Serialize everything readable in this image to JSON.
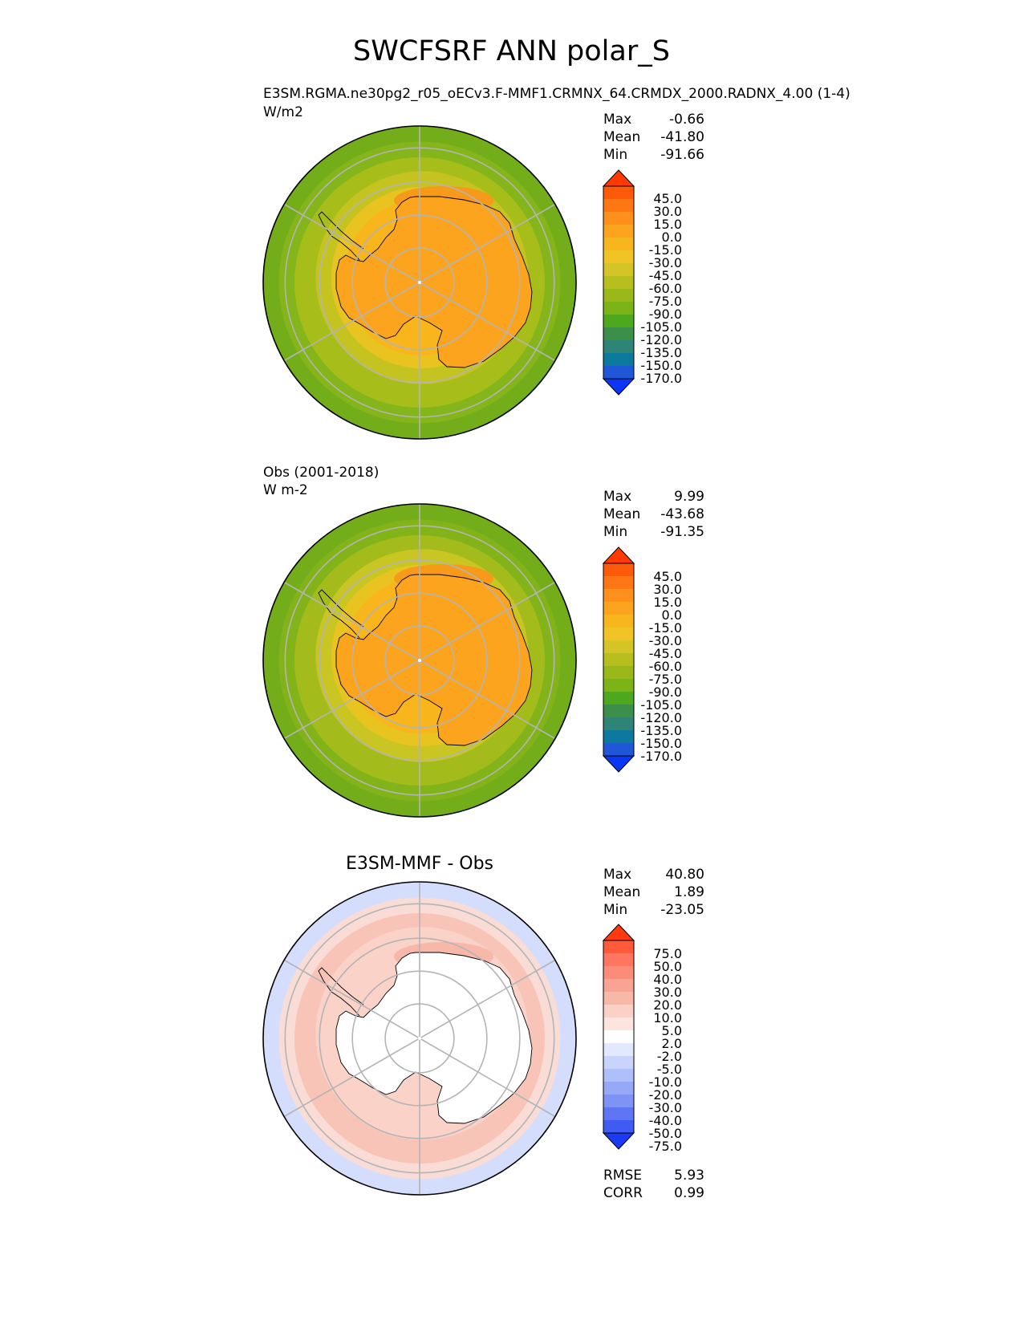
{
  "figure": {
    "title": "SWCFSRF ANN polar_S"
  },
  "panels": [
    {
      "id": "test",
      "title": "E3SM.RGMA.ne30pg2_r05_oECv3.F-MMF1.CRMNX_64.CRMDX_2000.RADNX_4.00 (1-4)",
      "units": "W/m2",
      "stats": [
        {
          "label": "Max",
          "value": "-0.66"
        },
        {
          "label": "Mean",
          "value": "-41.80"
        },
        {
          "label": "Min",
          "value": "-91.66"
        }
      ],
      "colorbar": {
        "levels": [
          "45.0",
          "30.0",
          "15.0",
          "0.0",
          "-15.0",
          "-30.0",
          "-45.0",
          "-60.0",
          "-75.0",
          "-90.0",
          "-105.0",
          "-120.0",
          "-135.0",
          "-150.0",
          "-170.0"
        ],
        "colors": [
          "#ff3a00",
          "#ff5a0a",
          "#ff7614",
          "#ff901c",
          "#fca41e",
          "#f7b51e",
          "#f0c326",
          "#d4c425",
          "#b6bf1e",
          "#9ab81a",
          "#7cb317",
          "#4ea81e",
          "#3c8f48",
          "#2e8476",
          "#0b7a9c",
          "#1f57d6",
          "#0b36f5"
        ]
      },
      "map": {
        "rings": [
          "#73ad1a",
          "#84b51a",
          "#a6bd1a",
          "#c4c31f",
          "#e9c421",
          "#f8b61c"
        ],
        "land_color": "#fca41e",
        "edge_patch_color": "#f79a1a"
      }
    },
    {
      "id": "ref",
      "title": "Obs (2001-2018)",
      "units": "W m-2",
      "stats": [
        {
          "label": "Max",
          "value": "9.99"
        },
        {
          "label": "Mean",
          "value": "-43.68"
        },
        {
          "label": "Min",
          "value": "-91.35"
        }
      ],
      "colorbar": {
        "levels": [
          "45.0",
          "30.0",
          "15.0",
          "0.0",
          "-15.0",
          "-30.0",
          "-45.0",
          "-60.0",
          "-75.0",
          "-90.0",
          "-105.0",
          "-120.0",
          "-135.0",
          "-150.0",
          "-170.0"
        ],
        "colors": [
          "#ff3a00",
          "#ff5a0a",
          "#ff7614",
          "#ff901c",
          "#fca41e",
          "#f7b51e",
          "#f0c326",
          "#d4c425",
          "#b6bf1e",
          "#9ab81a",
          "#7cb317",
          "#4ea81e",
          "#3c8f48",
          "#2e8476",
          "#0b7a9c",
          "#1f57d6",
          "#0b36f5"
        ]
      },
      "map": {
        "rings": [
          "#73ad1a",
          "#82b41a",
          "#a3bc1c",
          "#c9c522",
          "#e9c421",
          "#f8b61c"
        ],
        "land_color": "#fca41e",
        "edge_patch_color": "#f79a1a"
      }
    },
    {
      "id": "diff",
      "title": "E3SM-MMF - Obs",
      "stats": [
        {
          "label": "Max",
          "value": "40.80"
        },
        {
          "label": "Mean",
          "value": "1.89"
        },
        {
          "label": "Min",
          "value": "-23.05"
        }
      ],
      "extra_stats": [
        {
          "label": "RMSE",
          "value": "5.93"
        },
        {
          "label": "CORR",
          "value": "0.99"
        }
      ],
      "colorbar": {
        "levels": [
          "75.0",
          "50.0",
          "40.0",
          "30.0",
          "20.0",
          "10.0",
          "5.0",
          "2.0",
          "-2.0",
          "-5.0",
          "-10.0",
          "-20.0",
          "-30.0",
          "-40.0",
          "-50.0",
          "-75.0"
        ],
        "colors": [
          "#ff3a10",
          "#ff5a3a",
          "#ff7660",
          "#fb8c78",
          "#f9a492",
          "#f8b8a8",
          "#fbd0c6",
          "#fde4de",
          "#ffffff",
          "#e2e8fd",
          "#c8d4fb",
          "#aebff9",
          "#96a9f7",
          "#7f93f5",
          "#5e76f4",
          "#3f5bf4",
          "#1a3af5"
        ]
      },
      "map": {
        "rings": [
          "#d4defc",
          "#fadcd6",
          "#f8c4b8",
          "#fad2c8"
        ],
        "land_color": "#ffffff",
        "edge_patch_color": "#f7b8aa"
      }
    }
  ]
}
